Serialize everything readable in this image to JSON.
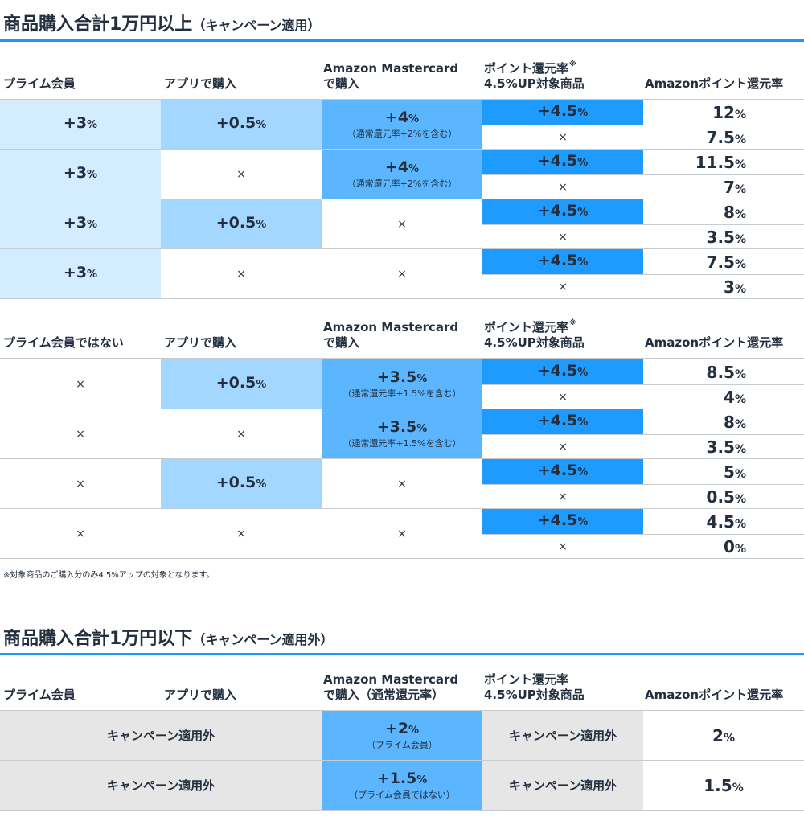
{
  "section1": {
    "title": "商品購入合計1万円以上",
    "subtitle": "（キャンペーン適用）"
  },
  "table1": {
    "headers": {
      "prime": "プライム会員",
      "app": "アプリで購入",
      "card_1": "Amazon Mastercard",
      "card_2": "で購入",
      "point_1": "ポイント還元率",
      "point_mark": "※",
      "point_2": "4.5%UP対象商品",
      "result": "Amazonポイント還元率"
    },
    "groups": [
      {
        "prime": {
          "num": "+3",
          "pct": "%"
        },
        "app": {
          "num": "+0.5",
          "pct": "%"
        },
        "card": {
          "num": "+4",
          "pct": "%",
          "note": "（通常還元率+2%を含む）"
        },
        "results": [
          {
            "num": "12",
            "pct": "%"
          },
          {
            "num": "7.5",
            "pct": "%"
          }
        ]
      },
      {
        "prime": {
          "num": "+3",
          "pct": "%"
        },
        "app": {
          "cross": "×"
        },
        "card": {
          "num": "+4",
          "pct": "%",
          "note": "（通常還元率+2%を含む）"
        },
        "results": [
          {
            "num": "11.5",
            "pct": "%"
          },
          {
            "num": "7",
            "pct": "%"
          }
        ]
      },
      {
        "prime": {
          "num": "+3",
          "pct": "%"
        },
        "app": {
          "num": "+0.5",
          "pct": "%"
        },
        "card": {
          "cross": "×"
        },
        "results": [
          {
            "num": "8",
            "pct": "%"
          },
          {
            "num": "3.5",
            "pct": "%"
          }
        ]
      },
      {
        "prime": {
          "num": "+3",
          "pct": "%"
        },
        "app": {
          "cross": "×"
        },
        "card": {
          "cross": "×"
        },
        "results": [
          {
            "num": "7.5",
            "pct": "%"
          },
          {
            "num": "3",
            "pct": "%"
          }
        ]
      }
    ],
    "point_yes": {
      "num": "+4.5",
      "pct": "%"
    },
    "point_no": "×"
  },
  "table2": {
    "headers": {
      "prime": "プライム会員ではない",
      "app": "アプリで購入",
      "card_1": "Amazon Mastercard",
      "card_2": "で購入",
      "point_1": "ポイント還元率",
      "point_mark": "※",
      "point_2": "4.5%UP対象商品",
      "result": "Amazonポイント還元率"
    },
    "groups": [
      {
        "prime": {
          "cross": "×"
        },
        "app": {
          "num": "+0.5",
          "pct": "%"
        },
        "card": {
          "num": "+3.5",
          "pct": "%",
          "note": "（通常還元率+1.5%を含む）"
        },
        "results": [
          {
            "num": "8.5",
            "pct": "%"
          },
          {
            "num": "4",
            "pct": "%"
          }
        ]
      },
      {
        "prime": {
          "cross": "×"
        },
        "app": {
          "cross": "×"
        },
        "card": {
          "num": "+3.5",
          "pct": "%",
          "note": "（通常還元率+1.5%を含む）"
        },
        "results": [
          {
            "num": "8",
            "pct": "%"
          },
          {
            "num": "3.5",
            "pct": "%"
          }
        ]
      },
      {
        "prime": {
          "cross": "×"
        },
        "app": {
          "num": "+0.5",
          "pct": "%"
        },
        "card": {
          "cross": "×"
        },
        "results": [
          {
            "num": "5",
            "pct": "%"
          },
          {
            "num": "0.5",
            "pct": "%"
          }
        ]
      },
      {
        "prime": {
          "cross": "×"
        },
        "app": {
          "cross": "×"
        },
        "card": {
          "cross": "×"
        },
        "results": [
          {
            "num": "4.5",
            "pct": "%"
          },
          {
            "num": "0",
            "pct": "%"
          }
        ]
      }
    ],
    "point_yes": {
      "num": "+4.5",
      "pct": "%"
    },
    "point_no": "×"
  },
  "footnote": "※対象商品のご購入分のみ4.5%アップの対象となります。",
  "section2": {
    "title": "商品購入合計1万円以下",
    "subtitle": "（キャンペーン適用外）"
  },
  "table3": {
    "headers": {
      "prime": "プライム会員",
      "app": "アプリで購入",
      "card_1": "Amazon Mastercard",
      "card_2": "で購入（通常還元率）",
      "point_1": "ポイント還元率",
      "point_2": "4.5%UP対象商品",
      "result": "Amazonポイント還元率"
    },
    "rows": [
      {
        "prime_app": "キャンペーン適用外",
        "card": {
          "num": "+2",
          "pct": "%",
          "note": "（プライム会員）"
        },
        "point": "キャンペーン適用外",
        "result": {
          "num": "2",
          "pct": "%"
        }
      },
      {
        "prime_app": "キャンペーン適用外",
        "card": {
          "num": "+1.5",
          "pct": "%",
          "note": "（プライム会員ではない）"
        },
        "point": "キャンペーン適用外",
        "result": {
          "num": "1.5",
          "pct": "%"
        }
      }
    ]
  },
  "colors": {
    "accent_rule": "#1a98ff",
    "prime_bg": "#d3ecff",
    "app_bg": "#a3d7ff",
    "card_bg": "#5bb6ff",
    "point_bg": "#1e9bff",
    "excluded_bg": "#e6e6e6",
    "text": "#232f3e"
  }
}
